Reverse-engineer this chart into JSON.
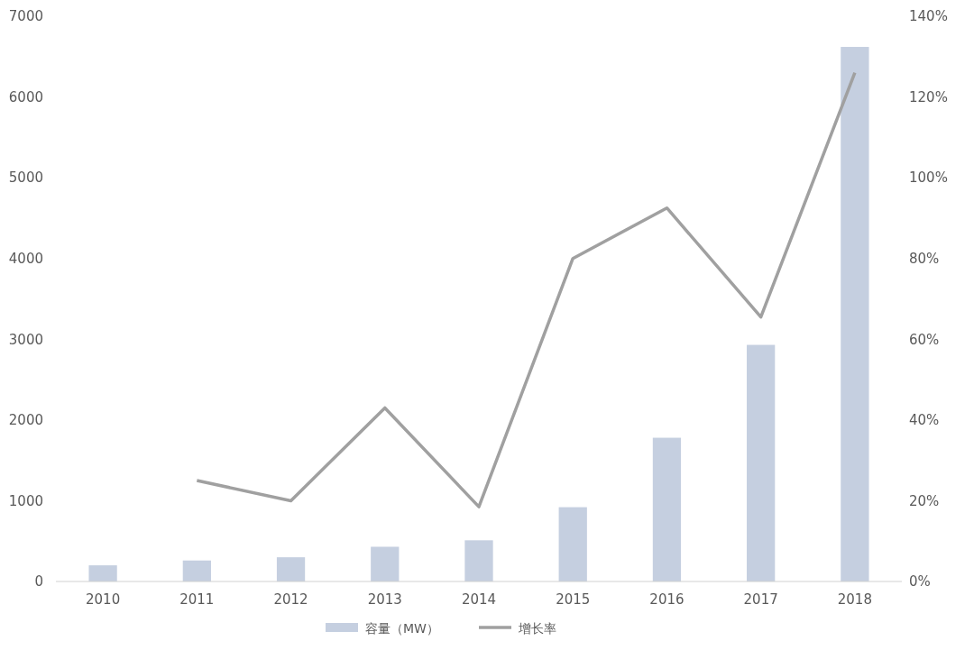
{
  "chart_data": {
    "type": "bar",
    "categories": [
      "2010",
      "2011",
      "2012",
      "2013",
      "2014",
      "2015",
      "2016",
      "2017",
      "2018"
    ],
    "series": [
      {
        "name": "容量（MW）",
        "color": "#c5cfe0",
        "values": [
          200,
          260,
          300,
          430,
          510,
          920,
          1780,
          2930,
          6620
        ]
      },
      {
        "name": "增长率",
        "type": "line",
        "axis": "y2",
        "color": "#a0a0a0",
        "values": [
          null,
          25,
          20,
          43,
          18.5,
          80,
          92.5,
          65.5,
          126
        ]
      }
    ],
    "ylim": [
      0,
      7000
    ],
    "yticks": [
      0,
      1000,
      2000,
      3000,
      4000,
      5000,
      6000,
      7000
    ],
    "y2lim": [
      0,
      140
    ],
    "y2ticks": [
      {
        "value": 0,
        "label": "0%"
      },
      {
        "value": 20,
        "label": "20%"
      },
      {
        "value": 40,
        "label": "40%"
      },
      {
        "value": 60,
        "label": "60%"
      },
      {
        "value": 80,
        "label": "80%"
      },
      {
        "value": 100,
        "label": "100%"
      },
      {
        "value": 120,
        "label": "120%"
      },
      {
        "value": 140,
        "label": "140%"
      }
    ],
    "legend": "bottom",
    "marker": "none"
  }
}
